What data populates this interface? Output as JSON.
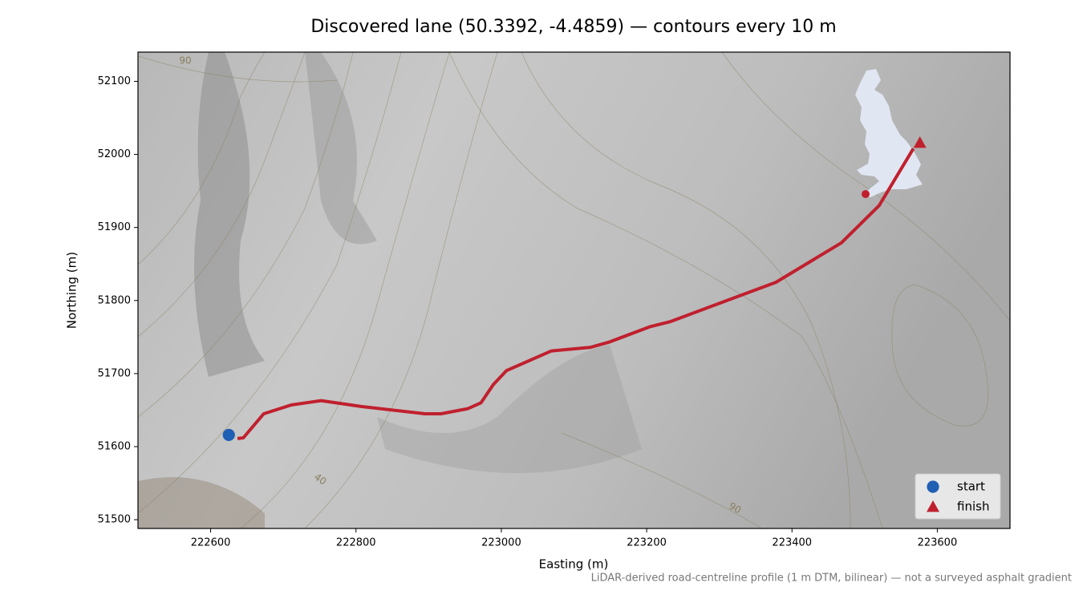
{
  "chart_data": {
    "type": "line",
    "title": "Discovered lane (50.3392, -4.4859) — contours every 10 m",
    "x_label": "Easting (m)",
    "y_label": "Northing (m)",
    "caption": "LiDAR-derived road-centreline profile (1 m DTM, bilinear) — not a surveyed asphalt gradient",
    "xlim": [
      222500,
      223700
    ],
    "ylim": [
      51488,
      52140
    ],
    "xticks": [
      222600,
      222800,
      223000,
      223200,
      223400,
      223600
    ],
    "yticks": [
      51500,
      51600,
      51700,
      51800,
      51900,
      52000,
      52100
    ],
    "route": {
      "color": "#c0202e",
      "x": [
        222637,
        222645,
        222673,
        222711,
        222752,
        222807,
        222895,
        222917,
        222954,
        222972,
        222989,
        223007,
        223069,
        223123,
        223148,
        223204,
        223232,
        223378,
        223468,
        223520,
        223567
      ],
      "y": [
        51611,
        51612,
        51645,
        51657,
        51663,
        51655,
        51645,
        51645,
        51652,
        51660,
        51685,
        51704,
        51731,
        51736,
        51743,
        51764,
        51771,
        51825,
        51879,
        51930,
        52008
      ]
    },
    "markers": [
      {
        "name": "start",
        "x": 222625,
        "y": 51616,
        "color": "#1f5fb4",
        "shape": "circle"
      },
      {
        "name": "finish",
        "x": 223576,
        "y": 52016,
        "color": "#c0202e",
        "shape": "triangle"
      }
    ],
    "contour_labels": [
      "90",
      "40",
      "90"
    ],
    "legend": "lower right"
  }
}
